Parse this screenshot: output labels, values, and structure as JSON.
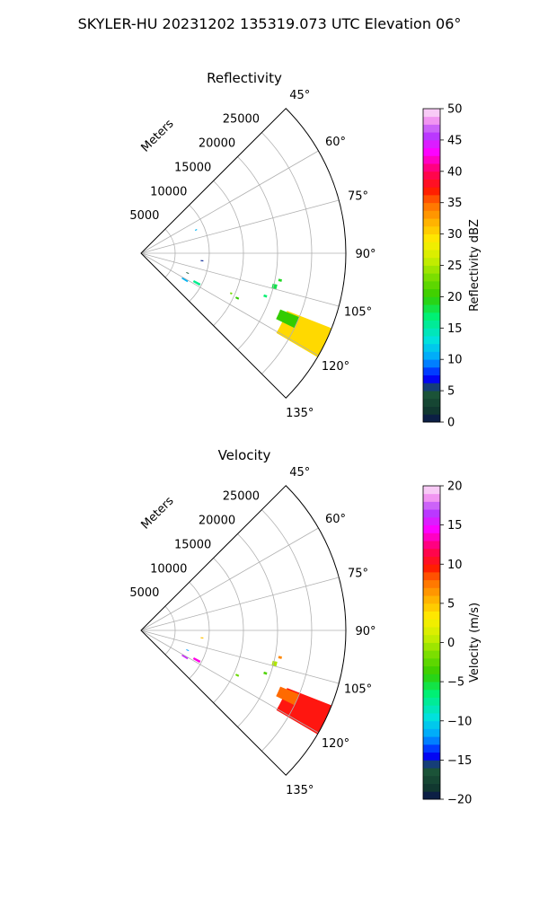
{
  "figure": {
    "suptitle": "SKYLER-HU  20231202  135319.073 UTC Elevation 06°"
  },
  "chart_data": [
    {
      "type": "polar-sector",
      "title": "Reflectivity",
      "radial_axis_label": "Meters",
      "theta_range_deg": [
        45,
        135
      ],
      "r_max_m": 30000,
      "radial_ticks": [
        5000,
        10000,
        15000,
        20000,
        25000
      ],
      "radial_tick_labels": [
        "5000",
        "10000",
        "15000",
        "20000",
        "25000"
      ],
      "angle_ticks": [
        45,
        60,
        75,
        90,
        105,
        120,
        135
      ],
      "angle_tick_labels": [
        "45°",
        "60°",
        "75°",
        "90°",
        "105°",
        "120°",
        "135°"
      ],
      "grid": true,
      "colorbar": {
        "label": "Reflectivity dBZ",
        "min": 0,
        "max": 50,
        "ticks": [
          0,
          5,
          10,
          15,
          20,
          25,
          30,
          35,
          40,
          45,
          50
        ],
        "tick_labels": [
          "0",
          "5",
          "10",
          "15",
          "20",
          "25",
          "30",
          "35",
          "40",
          "45",
          "50"
        ]
      },
      "echoes": [
        {
          "az_deg": 116,
          "r0_m": 23000,
          "r1_m": 30000,
          "az_width_deg": 9,
          "value": 30
        },
        {
          "az_deg": 114,
          "r0_m": 22000,
          "r1_m": 25000,
          "az_width_deg": 4,
          "value": 20
        },
        {
          "az_deg": 101,
          "r0_m": 20500,
          "r1_m": 21000,
          "az_width_deg": 1,
          "value": 19
        },
        {
          "az_deg": 104,
          "r0_m": 19800,
          "r1_m": 20500,
          "az_width_deg": 2,
          "value": 18
        },
        {
          "az_deg": 109,
          "r0_m": 19000,
          "r1_m": 19500,
          "az_width_deg": 1,
          "value": 17
        },
        {
          "az_deg": 115,
          "r0_m": 15300,
          "r1_m": 15800,
          "az_width_deg": 1,
          "value": 20
        },
        {
          "az_deg": 114,
          "r0_m": 14300,
          "r1_m": 14600,
          "az_width_deg": 1,
          "value": 23
        },
        {
          "az_deg": 118,
          "r0_m": 8700,
          "r1_m": 9800,
          "az_width_deg": 2,
          "value": 16
        },
        {
          "az_deg": 121,
          "r0_m": 7000,
          "r1_m": 8000,
          "az_width_deg": 2,
          "value": 11
        },
        {
          "az_deg": 113,
          "r0_m": 7200,
          "r1_m": 7600,
          "az_width_deg": 1,
          "value": 5
        },
        {
          "az_deg": 97,
          "r0_m": 8800,
          "r1_m": 9200,
          "az_width_deg": 1,
          "value": 6
        },
        {
          "az_deg": 67,
          "r0_m": 8600,
          "r1_m": 8900,
          "az_width_deg": 1,
          "value": 11
        }
      ]
    },
    {
      "type": "polar-sector",
      "title": "Velocity",
      "radial_axis_label": "Meters",
      "theta_range_deg": [
        45,
        135
      ],
      "r_max_m": 30000,
      "radial_ticks": [
        5000,
        10000,
        15000,
        20000,
        25000
      ],
      "radial_tick_labels": [
        "5000",
        "10000",
        "15000",
        "20000",
        "25000"
      ],
      "angle_ticks": [
        45,
        60,
        75,
        90,
        105,
        120,
        135
      ],
      "angle_tick_labels": [
        "45°",
        "60°",
        "75°",
        "90°",
        "105°",
        "120°",
        "135°"
      ],
      "grid": true,
      "colorbar": {
        "label": "Velocity (m/s)",
        "min": -20,
        "max": 20,
        "ticks": [
          -20,
          -15,
          -10,
          -5,
          0,
          5,
          10,
          15,
          20
        ],
        "tick_labels": [
          "−20",
          "−15",
          "−10",
          "−5",
          "0",
          "5",
          "10",
          "15",
          "20"
        ]
      },
      "echoes": [
        {
          "az_deg": 116,
          "r0_m": 23000,
          "r1_m": 30000,
          "az_width_deg": 9,
          "value": 10
        },
        {
          "az_deg": 114,
          "r0_m": 22000,
          "r1_m": 25000,
          "az_width_deg": 4,
          "value": 8
        },
        {
          "az_deg": 101,
          "r0_m": 20500,
          "r1_m": 21000,
          "az_width_deg": 1,
          "value": 7
        },
        {
          "az_deg": 104,
          "r0_m": 19800,
          "r1_m": 20500,
          "az_width_deg": 2,
          "value": 0
        },
        {
          "az_deg": 109,
          "r0_m": 19000,
          "r1_m": 19500,
          "az_width_deg": 1,
          "value": -3
        },
        {
          "az_deg": 115,
          "r0_m": 15300,
          "r1_m": 15800,
          "az_width_deg": 1,
          "value": -2
        },
        {
          "az_deg": 118,
          "r0_m": 8700,
          "r1_m": 9800,
          "az_width_deg": 2,
          "value": 14
        },
        {
          "az_deg": 121,
          "r0_m": 7000,
          "r1_m": 8000,
          "az_width_deg": 2,
          "value": 16
        },
        {
          "az_deg": 113,
          "r0_m": 7200,
          "r1_m": 7600,
          "az_width_deg": 1,
          "value": -12
        },
        {
          "az_deg": 97,
          "r0_m": 8800,
          "r1_m": 9200,
          "az_width_deg": 1,
          "value": 5
        }
      ]
    }
  ]
}
